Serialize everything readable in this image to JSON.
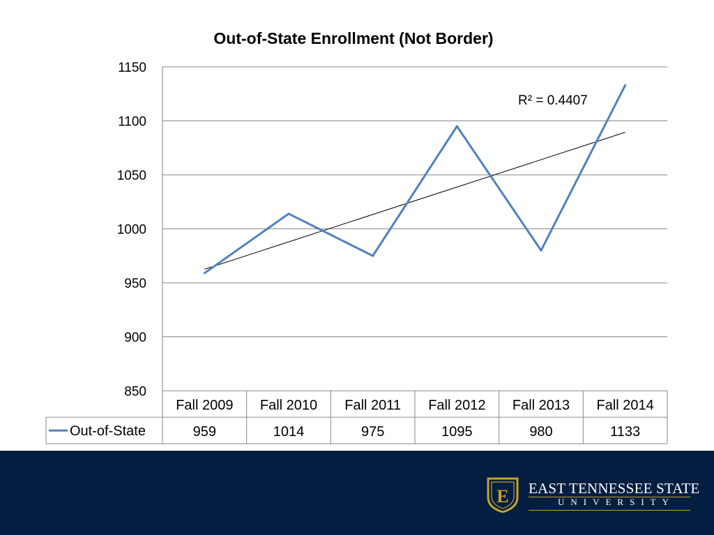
{
  "chart_data": {
    "type": "line",
    "title": "Out-of-State Enrollment (Not Border)",
    "categories": [
      "Fall 2009",
      "Fall 2010",
      "Fall 2011",
      "Fall 2012",
      "Fall 2013",
      "Fall 2014"
    ],
    "series": [
      {
        "name": "Out-of-State",
        "values": [
          959,
          1014,
          975,
          1095,
          980,
          1133
        ],
        "color": "#4f81bd"
      }
    ],
    "yticks": [
      850,
      900,
      950,
      1000,
      1050,
      1100,
      1150
    ],
    "ylim": [
      850,
      1150
    ],
    "trendline": {
      "type": "linear",
      "r2_label": "R² = 0.4407",
      "color": "#000000"
    },
    "grid": true,
    "legend": "data-table",
    "data_table": true
  },
  "footer": {
    "background": "#041e42",
    "accent": "#c9a227",
    "logo_letter": "E",
    "logo_name": "EAST TENNESSEE STATE",
    "logo_sub": "UNIVERSITY"
  }
}
